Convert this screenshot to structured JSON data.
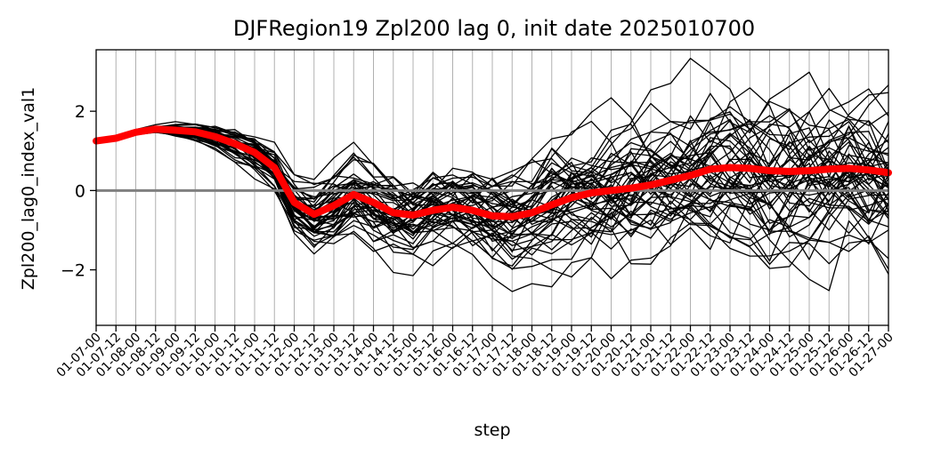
{
  "chart_data": {
    "type": "line",
    "title": "DJFRegion19 Zpl200 lag 0, init date 2025010700",
    "xlabel": "step",
    "ylabel": "Zpl200_lag0_index_val1",
    "categories": [
      "01-07-00",
      "01-07-12",
      "01-08-00",
      "01-08-12",
      "01-09-00",
      "01-09-12",
      "01-10-00",
      "01-10-12",
      "01-11-00",
      "01-11-12",
      "01-12-00",
      "01-12-12",
      "01-13-00",
      "01-13-12",
      "01-14-00",
      "01-14-12",
      "01-15-00",
      "01-15-12",
      "01-16-00",
      "01-16-12",
      "01-17-00",
      "01-17-12",
      "01-18-00",
      "01-18-12",
      "01-19-00",
      "01-19-12",
      "01-20-00",
      "01-20-12",
      "01-21-00",
      "01-21-12",
      "01-22-00",
      "01-22-12",
      "01-23-00",
      "01-23-12",
      "01-24-00",
      "01-24-12",
      "01-25-00",
      "01-25-12",
      "01-26-00",
      "01-26-12",
      "01-27-00"
    ],
    "yticks": [
      -2,
      0,
      2
    ],
    "ylim": [
      -3.4,
      3.55
    ],
    "grid": "vertical",
    "zero_line": 0,
    "colors": {
      "members": "#000000",
      "mean": "#ff0000",
      "zero": "#808080",
      "grid": "#b0b0b0"
    },
    "mean_series": {
      "values": [
        1.25,
        1.32,
        1.47,
        1.55,
        1.52,
        1.48,
        1.36,
        1.18,
        0.96,
        0.58,
        -0.3,
        -0.6,
        -0.38,
        -0.1,
        -0.3,
        -0.56,
        -0.62,
        -0.5,
        -0.42,
        -0.5,
        -0.64,
        -0.66,
        -0.56,
        -0.36,
        -0.18,
        -0.06,
        0.0,
        0.06,
        0.14,
        0.26,
        0.38,
        0.54,
        0.58,
        0.56,
        0.5,
        0.48,
        0.5,
        0.54,
        0.56,
        0.52,
        0.45
      ]
    },
    "members_summary": {
      "count": 50,
      "spread": [
        0.04,
        0.06,
        0.07,
        0.09,
        0.12,
        0.15,
        0.2,
        0.26,
        0.33,
        0.4,
        0.55,
        0.62,
        0.68,
        0.72,
        0.74,
        0.76,
        0.78,
        0.8,
        0.82,
        0.85,
        0.9,
        0.95,
        1.0,
        1.05,
        1.1,
        1.15,
        1.2,
        1.25,
        1.3,
        1.35,
        1.4,
        1.45,
        1.48,
        1.5,
        1.52,
        1.54,
        1.55,
        1.56,
        1.57,
        1.58,
        1.58
      ]
    }
  }
}
